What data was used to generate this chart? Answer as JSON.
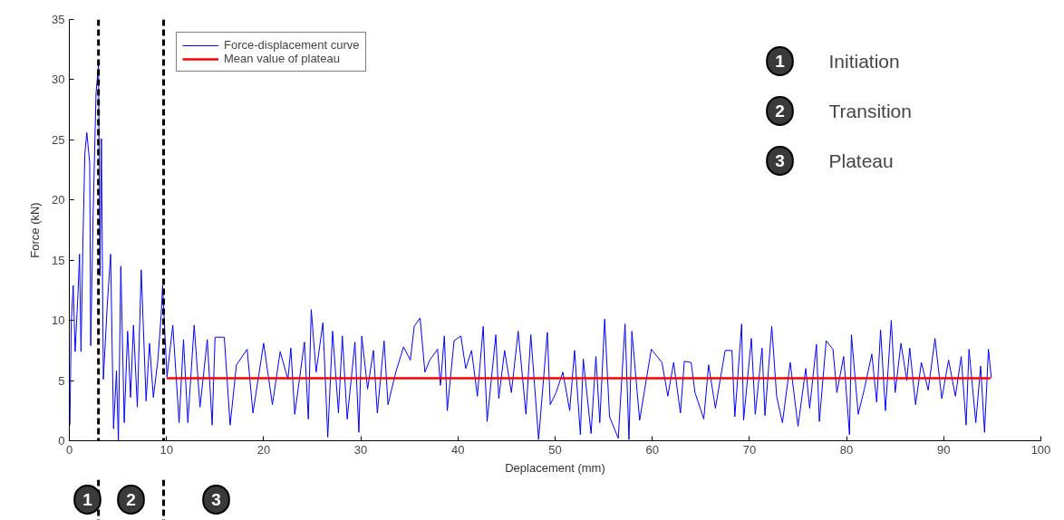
{
  "chart_data": {
    "type": "line",
    "xlabel": "Deplacement (mm)",
    "ylabel": "Force (kN)",
    "xlim": [
      0,
      100
    ],
    "ylim": [
      0,
      35
    ],
    "xticks": [
      0,
      10,
      20,
      30,
      40,
      50,
      60,
      70,
      80,
      90,
      100
    ],
    "yticks": [
      0,
      5,
      10,
      15,
      20,
      25,
      30,
      35
    ],
    "grid": false,
    "legend": "top left",
    "line_style": "solid",
    "marker": "none",
    "series": [
      {
        "name": "Force-displacement curve",
        "color": "#0000ff",
        "x": [
          0.06,
          0.2,
          0.4,
          0.6,
          0.9,
          1.05,
          1.2,
          1.4,
          1.6,
          1.8,
          2.1,
          2.2,
          2.45,
          2.75,
          3.0,
          3.15,
          3.3,
          3.5,
          3.9,
          4.25,
          4.55,
          4.85,
          5.05,
          5.3,
          5.65,
          6.0,
          6.3,
          6.6,
          7.0,
          7.4,
          7.9,
          8.25,
          8.65,
          9.1,
          9.45,
          9.6,
          10.05,
          10.65,
          11.3,
          11.75,
          12.2,
          12.85,
          13.45,
          14.2,
          14.7,
          15.0,
          15.95,
          16.55,
          17.2,
          18.3,
          18.9,
          20.0,
          20.9,
          21.7,
          22.5,
          22.8,
          23.2,
          24.2,
          24.6,
          24.9,
          25.4,
          26.1,
          26.6,
          27.1,
          27.7,
          28.1,
          28.6,
          29.4,
          29.8,
          30.1,
          30.7,
          31.3,
          31.7,
          32.4,
          32.8,
          33.6,
          34.4,
          35.1,
          35.5,
          36.1,
          36.6,
          37.1,
          37.9,
          38.2,
          38.6,
          38.9,
          39.6,
          40.3,
          40.8,
          41.4,
          42.0,
          42.6,
          43.0,
          43.9,
          44.2,
          44.8,
          45.5,
          46.2,
          47.0,
          47.5,
          48.3,
          49.2,
          49.5,
          50.1,
          50.8,
          51.5,
          52.0,
          52.6,
          52.9,
          53.7,
          54.2,
          54.6,
          55.1,
          55.6,
          56.5,
          57.2,
          57.6,
          57.9,
          58.7,
          59.9,
          61.0,
          61.6,
          62.2,
          62.9,
          63.3,
          64.0,
          64.4,
          65.3,
          65.8,
          66.5,
          67.5,
          68.2,
          68.5,
          69.2,
          69.4,
          70.2,
          70.6,
          71.3,
          71.6,
          72.3,
          72.8,
          73.4,
          74.2,
          75.0,
          75.8,
          76.2,
          76.9,
          77.2,
          77.9,
          78.6,
          79.0,
          79.7,
          80.3,
          80.5,
          81.2,
          81.8,
          82.6,
          83.1,
          83.5,
          84.0,
          84.6,
          85.0,
          85.6,
          86.2,
          86.5,
          87.1,
          87.7,
          88.4,
          89.1,
          89.8,
          90.5,
          91.2,
          91.8,
          92.3,
          92.6,
          93.3,
          93.8,
          94.2,
          94.6,
          94.9
        ],
        "values": [
          1.3,
          9.9,
          12.9,
          7.4,
          12.4,
          15.5,
          7.4,
          16.5,
          23.9,
          25.6,
          23.1,
          7.9,
          18.8,
          28.9,
          31.2,
          13.7,
          25.1,
          5.1,
          11.2,
          15.5,
          1.0,
          5.8,
          0,
          14.5,
          1.5,
          9.1,
          3.6,
          9.6,
          2.8,
          14.2,
          3.3,
          8.1,
          3.6,
          6.6,
          10.4,
          12.9,
          5.3,
          9.6,
          1.5,
          8.4,
          1.5,
          9.6,
          2.8,
          8.4,
          1.3,
          8.6,
          8.6,
          1.3,
          6.3,
          7.6,
          2.3,
          8.1,
          3.0,
          7.4,
          5.1,
          7.7,
          2.2,
          8.2,
          1.8,
          10.9,
          5.7,
          9.8,
          0.3,
          9.1,
          2.3,
          8.7,
          1.8,
          8.2,
          0.7,
          8.7,
          4.3,
          7.5,
          2.3,
          8.3,
          3.0,
          5.7,
          7.8,
          6.7,
          9.5,
          10.2,
          5.7,
          6.7,
          7.6,
          4.6,
          8.7,
          2.5,
          8.3,
          8.7,
          6.0,
          7.5,
          3.7,
          9.5,
          1.6,
          8.8,
          3.5,
          7.5,
          4.0,
          9.1,
          2.2,
          8.8,
          0.1,
          9.0,
          3.0,
          4.0,
          5.7,
          2.5,
          7.5,
          0.5,
          6.8,
          0.6,
          7.0,
          1.5,
          10.1,
          2.0,
          0.2,
          9.7,
          0.1,
          9.1,
          1.7,
          7.6,
          6.5,
          3.7,
          6.5,
          2.3,
          6.6,
          6.5,
          4.0,
          1.8,
          6.3,
          2.7,
          7.5,
          7.5,
          2.0,
          9.7,
          1.7,
          8.5,
          2.2,
          7.7,
          2.1,
          9.5,
          3.7,
          1.5,
          6.5,
          1.2,
          6.0,
          2.7,
          8.0,
          1.6,
          8.3,
          7.6,
          4.0,
          7.0,
          0.5,
          8.8,
          2.2,
          4.2,
          7.2,
          3.2,
          9.2,
          2.5,
          10.0,
          4.0,
          8.1,
          5.0,
          7.7,
          3.0,
          6.5,
          4.2,
          8.5,
          3.5,
          6.7,
          3.7,
          7.0,
          1.3,
          7.6,
          1.5,
          6.2,
          0.7,
          7.6,
          5.2
        ]
      },
      {
        "name": "Mean value of plateau",
        "color": "#ff0000",
        "x": [
          10,
          94.8
        ],
        "values": [
          5.2,
          5.2
        ]
      }
    ],
    "ref_lines": [
      {
        "axis": "x",
        "value": 3.0,
        "label": null,
        "color": "#000000",
        "line_style": "dashed"
      },
      {
        "axis": "x",
        "value": 9.7,
        "label": null,
        "color": "#000000",
        "line_style": "dashed"
      }
    ],
    "annotations": [
      "1",
      "Initiation",
      "2",
      "Transition",
      "3",
      "Plateau",
      "1",
      "2",
      "3"
    ]
  }
}
